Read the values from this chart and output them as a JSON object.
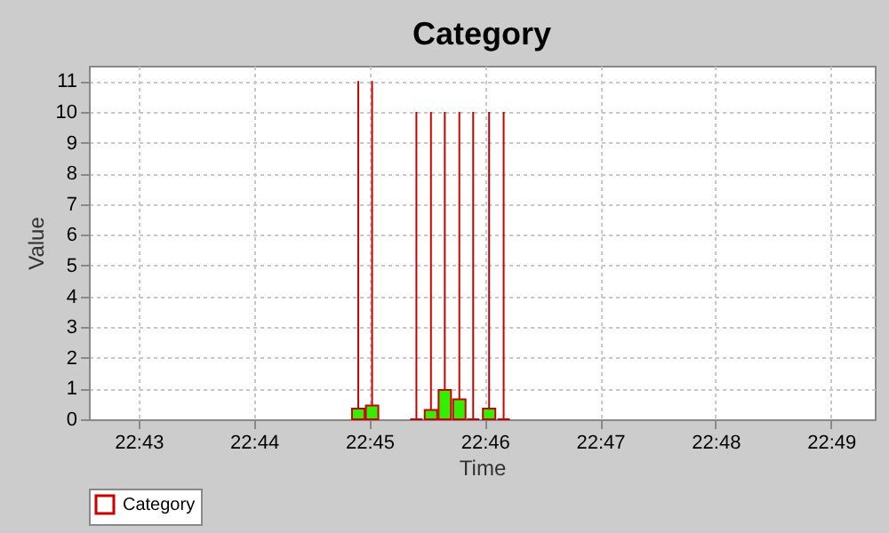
{
  "chart_data": {
    "type": "candlestick",
    "title": "Category",
    "xlabel": "Time",
    "ylabel": "Value",
    "x": [
      22.7484,
      22.7504,
      22.7568,
      22.7589,
      22.7609,
      22.763,
      22.765,
      22.7673,
      22.7694
    ],
    "series": [
      {
        "name": "Category",
        "color": "#cc0000",
        "ohlc": [
          [
            0,
            11,
            0,
            0.35
          ],
          [
            0,
            11,
            0,
            0.45
          ],
          [
            0,
            10,
            0,
            0
          ],
          [
            0,
            10,
            0,
            0.3
          ],
          [
            0,
            10,
            0,
            0.95
          ],
          [
            0,
            10,
            0,
            0.65
          ],
          [
            0,
            10,
            0,
            0
          ],
          [
            0,
            10,
            0,
            0.35
          ],
          [
            0,
            10,
            0,
            0
          ]
        ],
        "colors": [
          "#33ee00",
          "#33ee00",
          "#cc0000",
          "#33ee00",
          "#33ee00",
          "#33ee00",
          "#cc0000",
          "#33ee00",
          "#cc0000"
        ]
      }
    ],
    "xlim": [
      22.7095,
      22.823
    ],
    "xticks": [
      {
        "value": 22.71667,
        "label": "22:43"
      },
      {
        "value": 22.73333,
        "label": "22:44"
      },
      {
        "value": 22.75,
        "label": "22:45"
      },
      {
        "value": 22.76667,
        "label": "22:46"
      },
      {
        "value": 22.78333,
        "label": "22:47"
      },
      {
        "value": 22.8,
        "label": "22:48"
      },
      {
        "value": 22.81667,
        "label": "22:49"
      }
    ],
    "ylim": [
      0,
      11.5
    ],
    "yticks": [
      0,
      1,
      2,
      3,
      4,
      5,
      6,
      7,
      8,
      9,
      10,
      11
    ],
    "grid": true,
    "legend": "bottom"
  }
}
